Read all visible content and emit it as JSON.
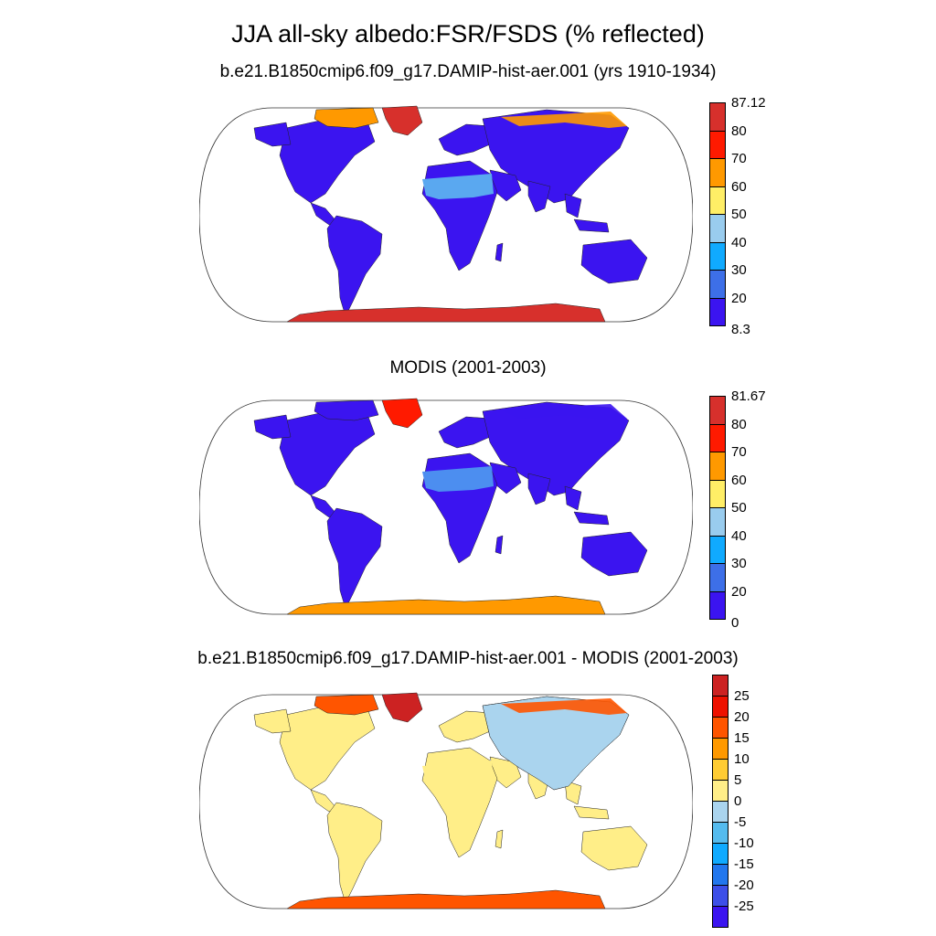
{
  "title": "JJA all-sky albedo:FSR/FSDS (% reflected)",
  "panels": [
    {
      "id": "model",
      "subtitle": "b.e21.B1850cmip6.f09_g17.DAMIP-hist-aer.001 (yrs 1910-1934)",
      "colorbar": {
        "labels": [
          "87.12",
          "80",
          "70",
          "60",
          "50",
          "40",
          "30",
          "20",
          "8.3"
        ],
        "colors": [
          "#d7302c",
          "#ff1a00",
          "#ff9900",
          "#ffee66",
          "#99ccee",
          "#10aaff",
          "#3d6fe8",
          "#3b14f0"
        ]
      },
      "regions": {
        "land": "#3b14f0",
        "sahara": "#5aa8f0",
        "antarctica": "#d7302c",
        "greenland": "#d7302c",
        "arctic": "#ff9900"
      }
    },
    {
      "id": "obs",
      "subtitle": "MODIS (2001-2003)",
      "colorbar": {
        "labels": [
          "81.67",
          "80",
          "70",
          "60",
          "50",
          "40",
          "30",
          "20",
          "0"
        ],
        "colors": [
          "#d7302c",
          "#ff1a00",
          "#ff9900",
          "#ffee66",
          "#99ccee",
          "#10aaff",
          "#3d6fe8",
          "#3b14f0"
        ]
      },
      "regions": {
        "land": "#3b14f0",
        "sahara": "#4c8ef0",
        "antarctica": "#ff9900",
        "greenland": "#ff1a00",
        "arctic": "#3b14f0"
      }
    },
    {
      "id": "diff",
      "subtitle": "b.e21.B1850cmip6.f09_g17.DAMIP-hist-aer.001 - MODIS (2001-2003)",
      "colorbar": {
        "labels": [
          "25",
          "20",
          "15",
          "10",
          "5",
          "0",
          "-5",
          "-10",
          "-15",
          "-20",
          "-25"
        ],
        "colors": [
          "#cc2222",
          "#ee1100",
          "#ff5500",
          "#ff9900",
          "#ffcc33",
          "#ffee88",
          "#aad4ee",
          "#55bbee",
          "#10aaff",
          "#2277ee",
          "#3d4fe8",
          "#3b14f0"
        ]
      },
      "regions": {
        "land": "#ffee88",
        "sahara": "#ffee88",
        "antarctica": "#ff5500",
        "greenland": "#cc2222",
        "arctic": "#ff5500",
        "eurasia": "#aad4ee"
      }
    }
  ]
}
